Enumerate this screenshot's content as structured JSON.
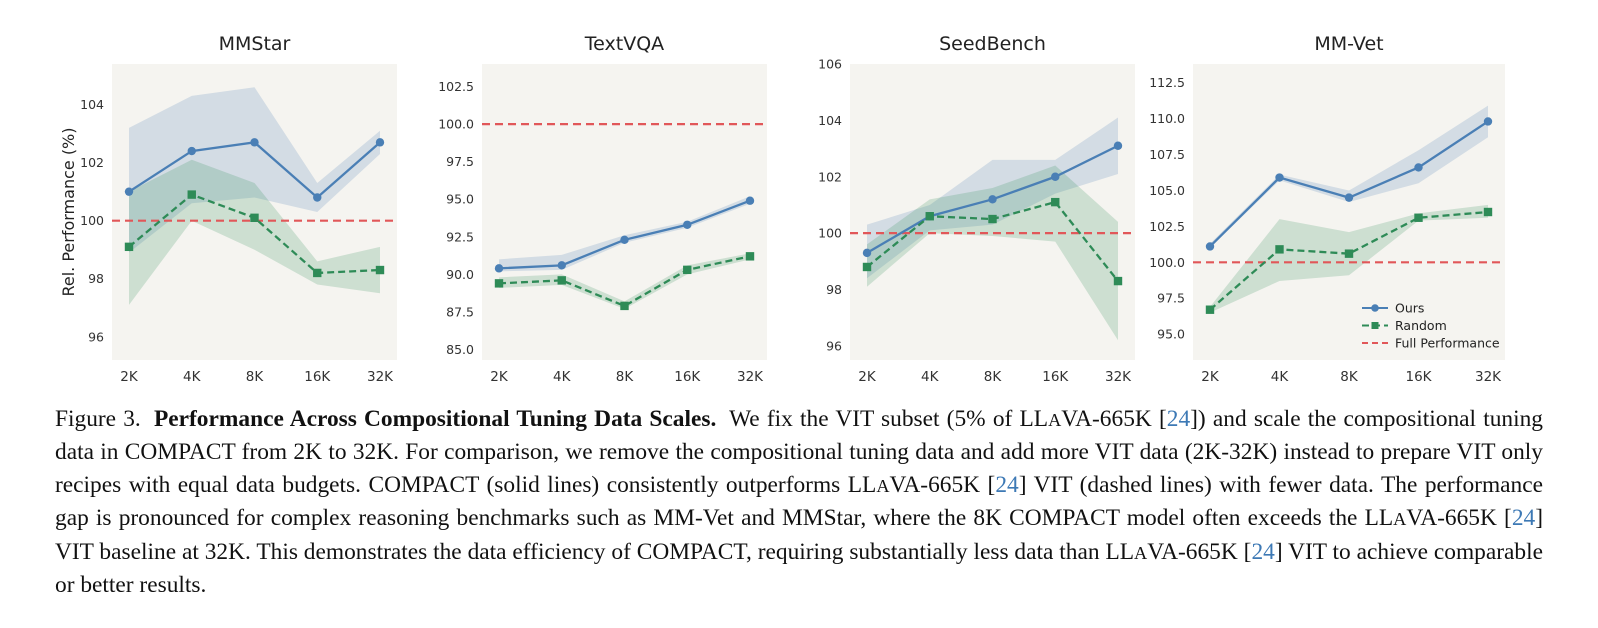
{
  "colors": {
    "ours": "#4a7fb5",
    "random": "#2e8b57",
    "full": "#e15759",
    "panel_bg": "#f5f4f0"
  },
  "chart_data": [
    {
      "type": "line",
      "title": "MMStar",
      "ylabel": "Rel. Performance (%)",
      "x": [
        2000,
        4000,
        8000,
        16000,
        32000
      ],
      "xticks": [
        "2K",
        "4K",
        "8K",
        "16K",
        "32K"
      ],
      "ylim": [
        95.2,
        105.4
      ],
      "yticks": [
        "96",
        "98",
        "100",
        "102",
        "104"
      ],
      "ytick_values": [
        96,
        98,
        100,
        102,
        104
      ],
      "reference_line": 100,
      "series": [
        {
          "name": "Ours",
          "style": "solid",
          "marker": "circle",
          "values": [
            101.0,
            102.4,
            102.7,
            100.8,
            102.7
          ],
          "band_low": [
            98.9,
            100.6,
            100.8,
            100.3,
            102.3
          ],
          "band_high": [
            103.2,
            104.3,
            104.6,
            101.3,
            103.1
          ]
        },
        {
          "name": "Random",
          "style": "dashed",
          "marker": "square",
          "values": [
            99.1,
            100.9,
            100.1,
            98.2,
            98.3
          ],
          "band_low": [
            97.1,
            100.0,
            99.0,
            97.8,
            97.5
          ],
          "band_high": [
            101.0,
            102.1,
            101.3,
            98.6,
            99.1
          ]
        }
      ]
    },
    {
      "type": "line",
      "title": "TextVQA",
      "x": [
        2000,
        4000,
        8000,
        16000,
        32000
      ],
      "xticks": [
        "2K",
        "4K",
        "8K",
        "16K",
        "32K"
      ],
      "ylim": [
        84.3,
        104.0
      ],
      "yticks": [
        "85.0",
        "87.5",
        "90.0",
        "92.5",
        "95.0",
        "97.5",
        "100.0",
        "102.5"
      ],
      "ytick_values": [
        85.0,
        87.5,
        90.0,
        92.5,
        95.0,
        97.5,
        100.0,
        102.5
      ],
      "reference_line": 100,
      "series": [
        {
          "name": "Ours",
          "style": "solid",
          "marker": "circle",
          "values": [
            90.4,
            90.6,
            92.3,
            93.3,
            94.9
          ],
          "band_low": [
            90.2,
            90.3,
            92.1,
            93.1,
            94.7
          ],
          "band_high": [
            91.0,
            91.3,
            92.6,
            93.5,
            95.2
          ]
        },
        {
          "name": "Random",
          "style": "dashed",
          "marker": "square",
          "values": [
            89.4,
            89.6,
            87.9,
            90.3,
            91.2
          ],
          "band_low": [
            89.1,
            89.3,
            87.7,
            90.0,
            91.0
          ],
          "band_high": [
            89.8,
            90.0,
            88.2,
            90.6,
            91.4
          ]
        }
      ]
    },
    {
      "type": "line",
      "title": "SeedBench",
      "x": [
        2000,
        4000,
        8000,
        16000,
        32000
      ],
      "xticks": [
        "2K",
        "4K",
        "8K",
        "16K",
        "32K"
      ],
      "ylim": [
        95.5,
        106.0
      ],
      "yticks": [
        "96",
        "98",
        "100",
        "102",
        "104",
        "106"
      ],
      "ytick_values": [
        96,
        98,
        100,
        102,
        104,
        106
      ],
      "reference_line": 100,
      "series": [
        {
          "name": "Ours",
          "style": "solid",
          "marker": "circle",
          "values": [
            99.3,
            100.6,
            101.2,
            102.0,
            103.1
          ],
          "band_low": [
            98.4,
            100.1,
            100.3,
            101.4,
            102.1
          ],
          "band_high": [
            100.3,
            101.0,
            102.6,
            102.6,
            104.1
          ]
        },
        {
          "name": "Random",
          "style": "dashed",
          "marker": "square",
          "values": [
            98.8,
            100.6,
            100.5,
            101.1,
            98.3
          ],
          "band_low": [
            98.1,
            100.0,
            99.9,
            99.7,
            96.2
          ],
          "band_high": [
            99.6,
            101.2,
            101.6,
            102.4,
            100.4
          ]
        }
      ]
    },
    {
      "type": "line",
      "title": "MM-Vet",
      "x": [
        2000,
        4000,
        8000,
        16000,
        32000
      ],
      "xticks": [
        "2K",
        "4K",
        "8K",
        "16K",
        "32K"
      ],
      "ylim": [
        93.2,
        113.8
      ],
      "yticks": [
        "95.0",
        "97.5",
        "100.0",
        "102.5",
        "105.0",
        "107.5",
        "110.0",
        "112.5"
      ],
      "ytick_values": [
        95.0,
        97.5,
        100.0,
        102.5,
        105.0,
        107.5,
        110.0,
        112.5
      ],
      "reference_line": 100,
      "legend": {
        "placement": "lower-right",
        "entries": [
          "Ours",
          "Random",
          "Full Performance"
        ]
      },
      "series": [
        {
          "name": "Ours",
          "style": "solid",
          "marker": "circle",
          "values": [
            101.1,
            105.9,
            104.5,
            106.6,
            109.8
          ],
          "band_low": [
            101.0,
            105.7,
            104.2,
            105.5,
            108.7
          ],
          "band_high": [
            101.3,
            106.1,
            105.0,
            107.8,
            110.9
          ]
        },
        {
          "name": "Random",
          "style": "dashed",
          "marker": "square",
          "values": [
            96.7,
            100.9,
            100.6,
            103.1,
            103.5
          ],
          "band_low": [
            96.5,
            98.7,
            99.1,
            102.9,
            103.1
          ],
          "band_high": [
            96.9,
            103.0,
            102.1,
            103.4,
            104.0
          ]
        }
      ]
    }
  ],
  "caption": {
    "label": "Figure 3.",
    "title": "Performance Across Compositional Tuning Data Scales.",
    "segments": [
      {
        "text": "We fix the VIT subset (5% of LL"
      },
      {
        "text": "A",
        "style": "sc"
      },
      {
        "text": "VA-665K ["
      },
      {
        "text": "24",
        "style": "cite"
      },
      {
        "text": "]) and scale the compositional tuning data in COMPACT from 2K to 32K. For comparison, we remove the compositional tuning data and add more VIT data (2K-32K) instead to prepare VIT only recipes with equal data budgets. COMPACT (solid lines) consistently outperforms LL"
      },
      {
        "text": "A",
        "style": "sc"
      },
      {
        "text": "VA-665K ["
      },
      {
        "text": "24",
        "style": "cite"
      },
      {
        "text": "] VIT (dashed lines) with fewer data. The performance gap is pronounced for complex reasoning benchmarks such as MM-Vet and MMStar, where the 8K COMPACT model often exceeds the LL"
      },
      {
        "text": "A",
        "style": "sc"
      },
      {
        "text": "VA-665K ["
      },
      {
        "text": "24",
        "style": "cite"
      },
      {
        "text": "] VIT baseline at 32K. This demonstrates the data efficiency of COMPACT, requiring substantially less data than LL"
      },
      {
        "text": "A",
        "style": "sc"
      },
      {
        "text": "VA-665K ["
      },
      {
        "text": "24",
        "style": "cite"
      },
      {
        "text": "] VIT to achieve comparable or better results."
      }
    ]
  }
}
